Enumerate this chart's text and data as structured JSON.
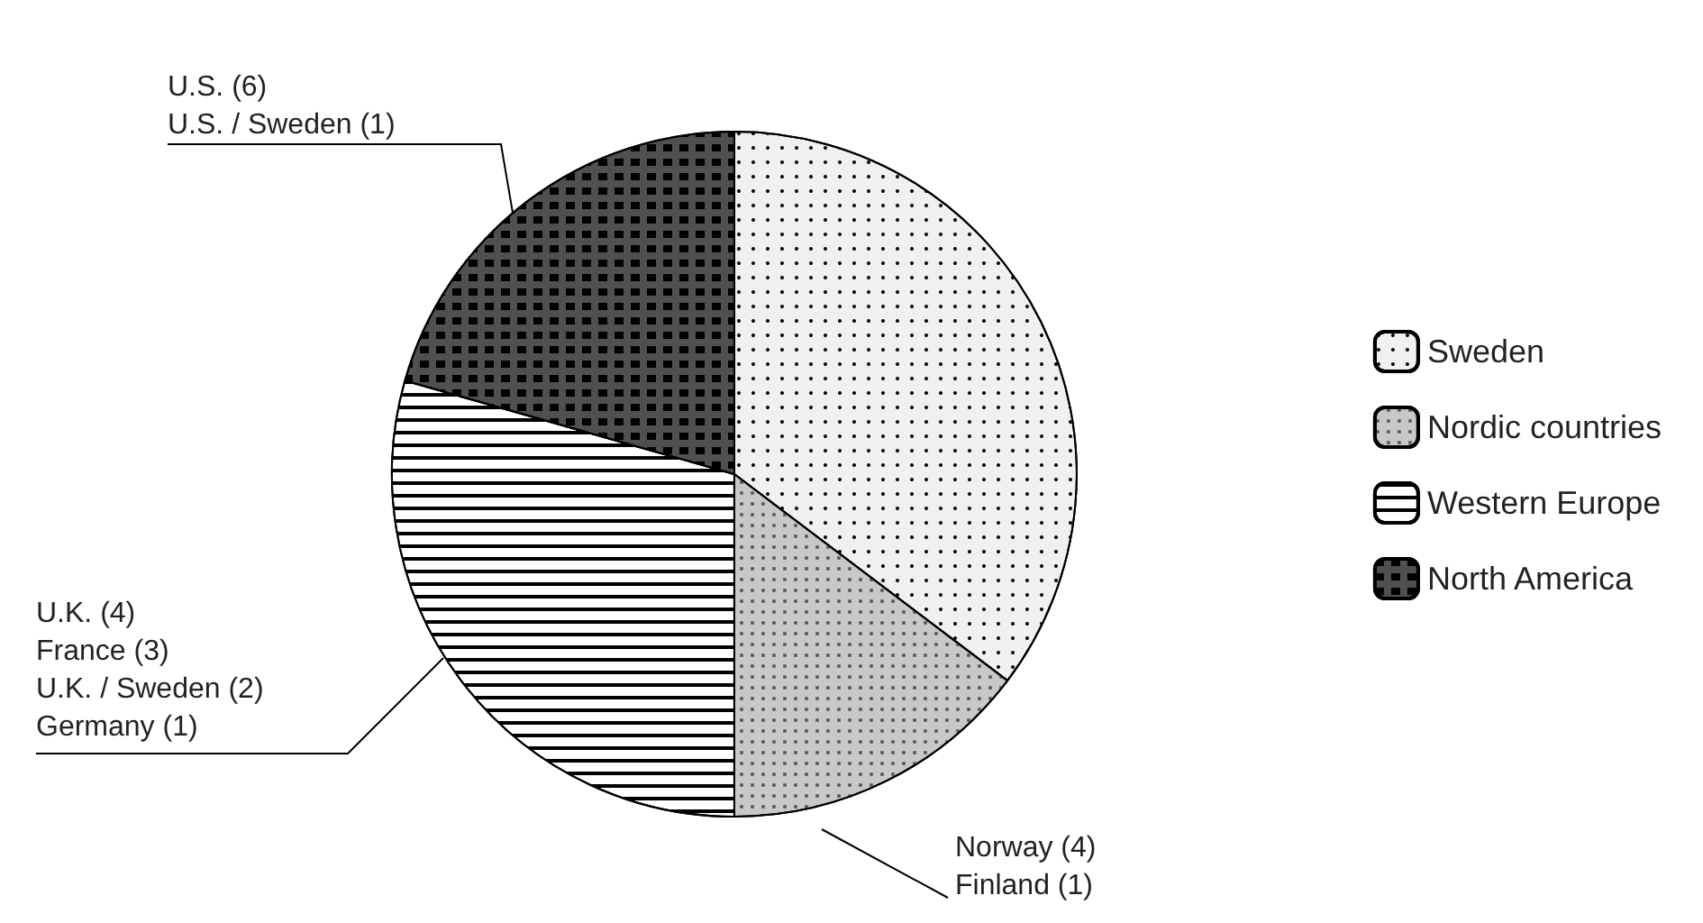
{
  "chart_data": {
    "type": "pie",
    "categories": [
      "Sweden",
      "Nordic countries",
      "Western Europe",
      "North America"
    ],
    "values": [
      35.3,
      14.7,
      29.4,
      20.6
    ],
    "colors": [
      "#f0f0f0",
      "#c8c8c8",
      "#ffffff",
      "#505050"
    ],
    "legend": "right",
    "annotations": [
      "U.S. (6)\nU.S. / Sweden (1)",
      "U.K. (4)\nFrance (3)\nU.K. / Sweden (2)\nGermany (1)",
      "Norway (4)\nFinland (1)"
    ]
  }
}
